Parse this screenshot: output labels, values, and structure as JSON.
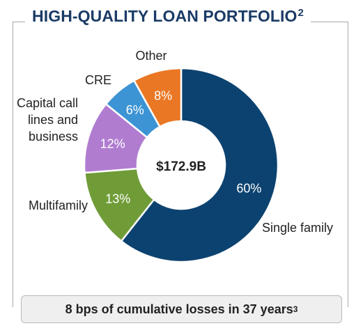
{
  "title": {
    "text": "HIGH-QUALITY LOAN PORTFOLIO",
    "superscript": "2"
  },
  "chart_data": {
    "type": "pie",
    "variant": "donut",
    "center_label": "$172.9B",
    "start_angle_deg": 0,
    "direction": "clockwise",
    "slices": [
      {
        "label": "Single family",
        "value": 60,
        "value_label": "60%",
        "color": "#0c4270"
      },
      {
        "label": "Multifamily",
        "value": 13,
        "value_label": "13%",
        "color": "#709c38"
      },
      {
        "label": "Capital call lines and business",
        "label_lines": [
          "Capital call",
          "lines and",
          "business"
        ],
        "value": 12,
        "value_label": "12%",
        "color": "#b07cd0"
      },
      {
        "label": "CRE",
        "value": 6,
        "value_label": "6%",
        "color": "#3d94d4"
      },
      {
        "label": "Other",
        "value": 8,
        "value_label": "8%",
        "color": "#ea7724"
      }
    ],
    "legend": "none"
  },
  "footnote": {
    "text": "8 bps of cumulative losses in 37 years",
    "superscript": "3"
  }
}
